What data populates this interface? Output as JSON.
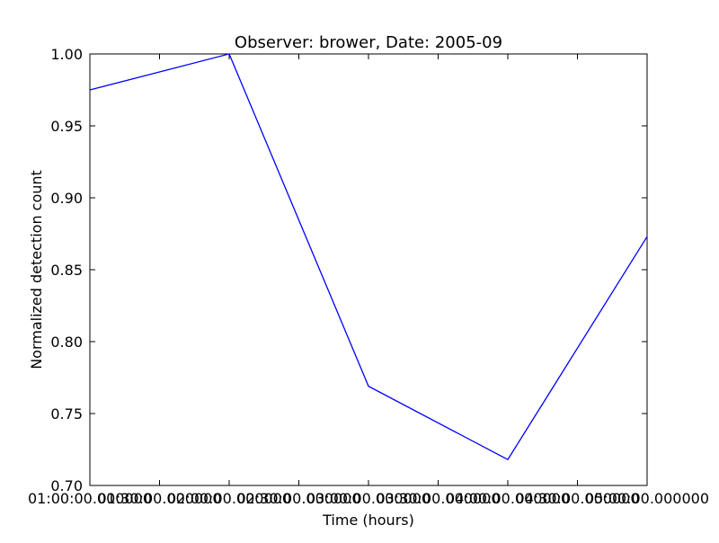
{
  "chart_data": {
    "type": "line",
    "title": "Observer: brower, Date: 2005-09",
    "xlabel": "Time (hours)",
    "ylabel": "Normalized detection count",
    "x_ticks": [
      "01:00:00.000000",
      "01:30:00.000000",
      "02:00:00.000000",
      "02:30:00.000000",
      "03:00:00.000000",
      "03:30:00.000000",
      "04:00:00.000000",
      "04:30:00.000000",
      "05:00:00.000000"
    ],
    "y_ticks": [
      "0.70",
      "0.75",
      "0.80",
      "0.85",
      "0.90",
      "0.95",
      "1.00"
    ],
    "ylim": [
      0.7,
      1.0
    ],
    "grid": false,
    "series": [
      {
        "color": "#0000ff",
        "points": [
          {
            "x": "01:00:00.000000",
            "y": 0.975
          },
          {
            "x": "02:00:00.000000",
            "y": 1.0
          },
          {
            "x": "03:00:00.000000",
            "y": 0.769
          },
          {
            "x": "04:00:00.000000",
            "y": 0.718
          },
          {
            "x": "05:00:00.000000",
            "y": 0.873
          }
        ]
      }
    ]
  }
}
